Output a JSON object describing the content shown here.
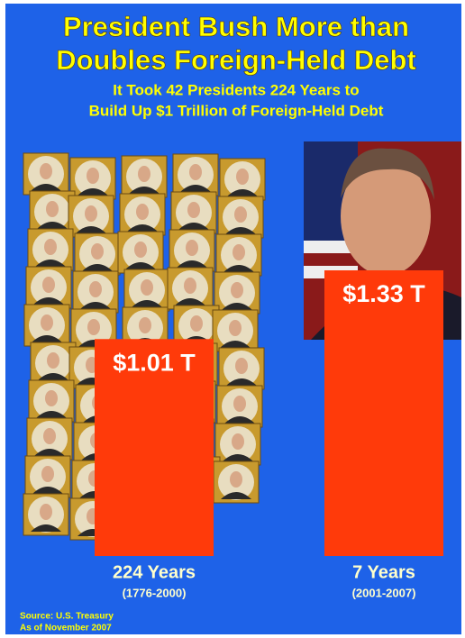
{
  "chart_data": {
    "type": "bar",
    "title": [
      "President Bush More than",
      "Doubles Foreign-Held Debt"
    ],
    "subtitle": [
      "It Took 42 Presidents 224 Years to",
      "Build Up $1 Trillion of Foreign-Held Debt"
    ],
    "categories": [
      "224 Years",
      "7 Years"
    ],
    "category_periods": [
      "(1776-2000)",
      "(2001-2007)"
    ],
    "values": [
      1.01,
      1.33
    ],
    "value_labels": [
      "$1.01 T",
      "$1.33 T"
    ],
    "color": "#ff3a0a",
    "source": [
      "Source: U.S. Treasury",
      "As of November 2007"
    ]
  }
}
